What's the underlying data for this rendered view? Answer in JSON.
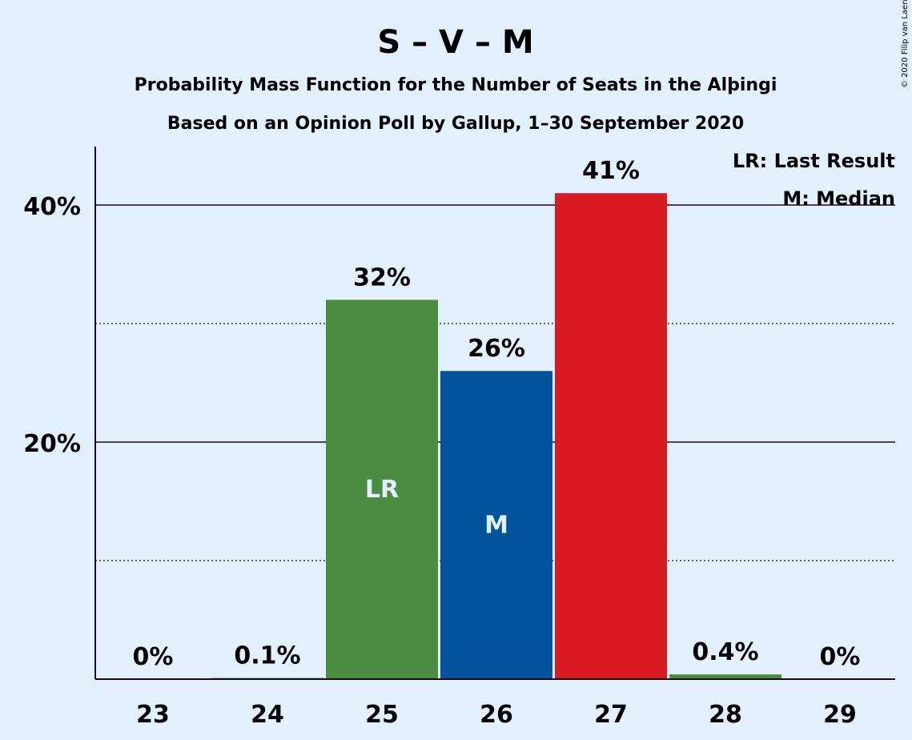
{
  "copyright": "© 2020 Filip van Laenen",
  "chart_data": {
    "type": "bar",
    "title": "S – V – M",
    "subtitle": "Probability Mass Function for the Number of Seats in the Alþingi",
    "subtitle2": "Based on an Opinion Poll by Gallup, 1–30 September 2020",
    "categories": [
      "23",
      "24",
      "25",
      "26",
      "27",
      "28",
      "29"
    ],
    "values": [
      0,
      0.1,
      32,
      26,
      41,
      0.4,
      0
    ],
    "value_labels": [
      "0%",
      "0.1%",
      "32%",
      "26%",
      "41%",
      "0.4%",
      "0%"
    ],
    "bar_colors": [
      "#4a8c40",
      "#4a8c40",
      "#4a8c40",
      "#02539b",
      "#d81a21",
      "#4a8c40",
      "#4a8c40"
    ],
    "in_bar_labels": [
      "",
      "",
      "LR",
      "M",
      "",
      "",
      ""
    ],
    "ylim": [
      0,
      45
    ],
    "yticks": [
      20,
      40
    ],
    "ytick_labels": [
      "20%",
      "40%"
    ],
    "minor_grid": [
      10,
      30
    ],
    "grid": true,
    "legend": [
      "LR: Last Result",
      "M: Median"
    ],
    "legend_position": "top-right"
  }
}
